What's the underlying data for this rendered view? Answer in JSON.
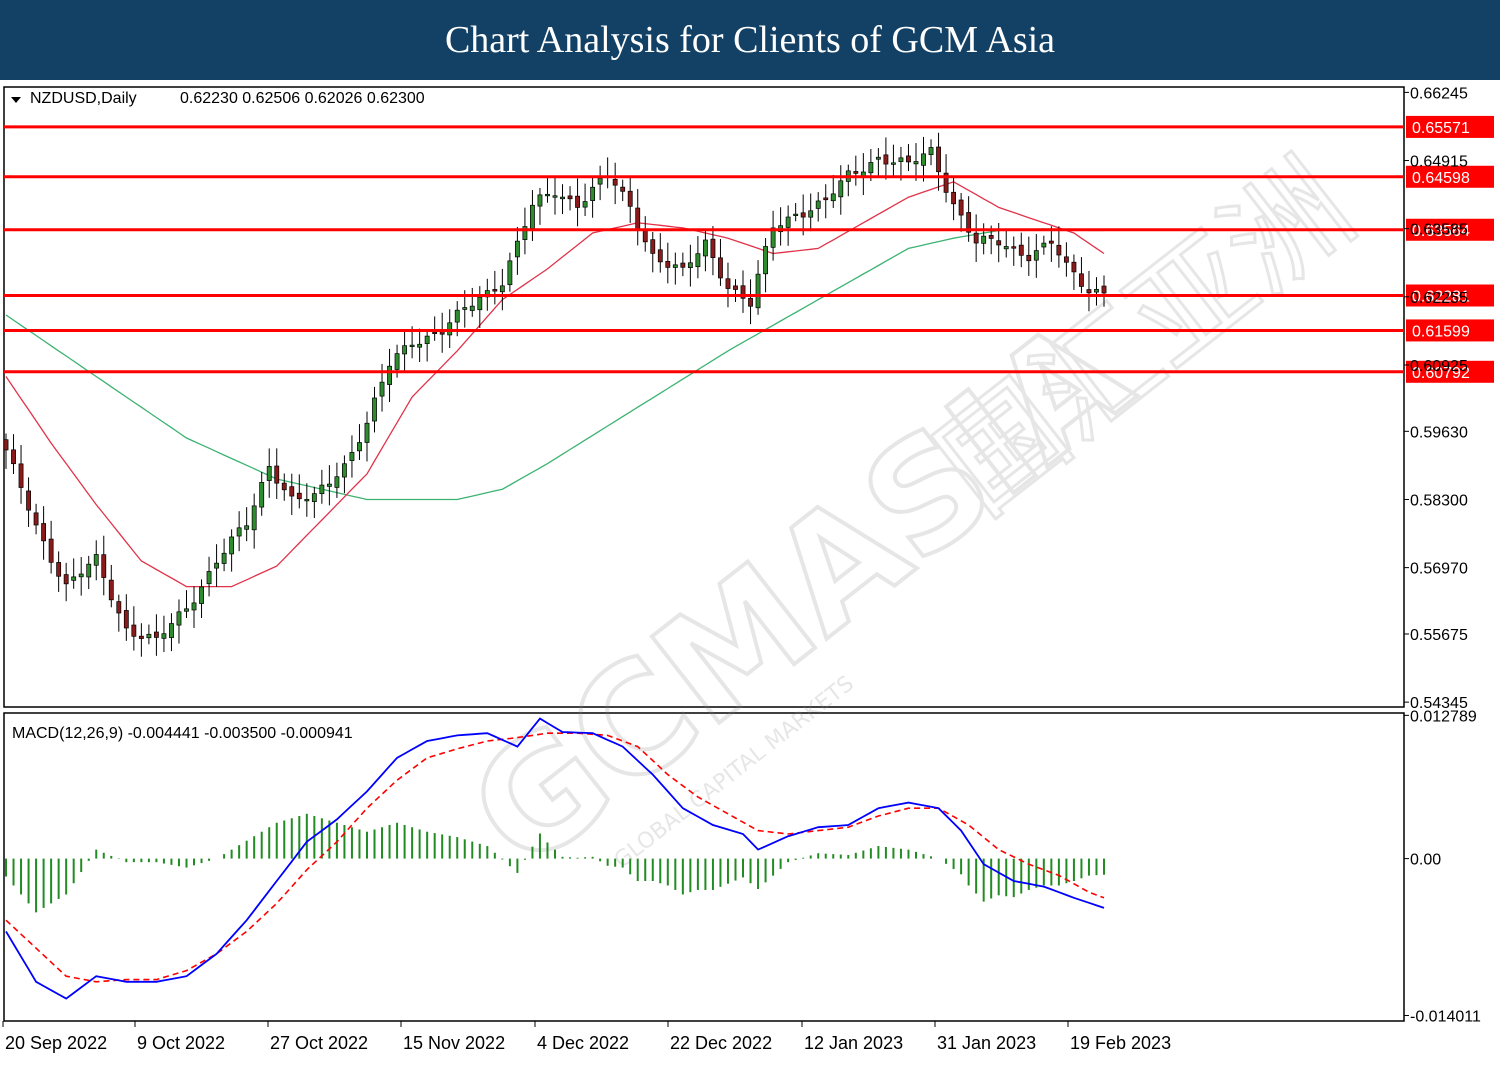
{
  "banner": {
    "title": "Chart Analysis for Clients of GCM Asia"
  },
  "colors": {
    "banner_bg": "#134166",
    "level_line": "#ff0000",
    "bull_candle": "#2e8b2e",
    "bear_candle": "#8b1a1a",
    "ma_fast": "#e0334a",
    "ma_slow": "#3cb371",
    "macd_line": "#0000ff",
    "signal_line": "#ff0000",
    "histogram": "#228b22"
  },
  "chart_data": {
    "type": "candlestick",
    "symbol_label": "NZDUSD,Daily",
    "ohlc_label": "0.62230 0.62506 0.62026 0.62300",
    "y_ticks": [
      "0.66245",
      "0.64915",
      "0.63585",
      "0.62255",
      "0.60925",
      "0.59630",
      "0.58300",
      "0.56970",
      "0.55675",
      "0.54345"
    ],
    "ylim": [
      0.5425,
      0.6635
    ],
    "x_labels": [
      "20 Sep 2022",
      "9 Oct 2022",
      "27 Oct 2022",
      "15 Nov 2022",
      "4 Dec 2022",
      "22 Dec 2022",
      "12 Jan 2023",
      "31 Jan 2023",
      "19 Feb 2023"
    ],
    "levels": [
      {
        "value": 0.65571,
        "label": "0.65571"
      },
      {
        "value": 0.64598,
        "label": "0.64598"
      },
      {
        "value": 0.63564,
        "label": "0.63564"
      },
      {
        "value": 0.62281,
        "label": "0.62281"
      },
      {
        "value": 0.61599,
        "label": "0.61599"
      },
      {
        "value": 0.60792,
        "label": "0.60792"
      }
    ],
    "close_anchors": [
      [
        0,
        0.592
      ],
      [
        4,
        0.578
      ],
      [
        8,
        0.566
      ],
      [
        12,
        0.571
      ],
      [
        16,
        0.558
      ],
      [
        20,
        0.555
      ],
      [
        24,
        0.562
      ],
      [
        28,
        0.571
      ],
      [
        32,
        0.578
      ],
      [
        35,
        0.59
      ],
      [
        38,
        0.583
      ],
      [
        41,
        0.583
      ],
      [
        45,
        0.59
      ],
      [
        48,
        0.598
      ],
      [
        51,
        0.609
      ],
      [
        54,
        0.614
      ],
      [
        58,
        0.616
      ],
      [
        62,
        0.621
      ],
      [
        66,
        0.626
      ],
      [
        70,
        0.64
      ],
      [
        73,
        0.643
      ],
      [
        76,
        0.641
      ],
      [
        80,
        0.646
      ],
      [
        83,
        0.64
      ],
      [
        86,
        0.631
      ],
      [
        90,
        0.627
      ],
      [
        93,
        0.633
      ],
      [
        96,
        0.625
      ],
      [
        99,
        0.621
      ],
      [
        102,
        0.636
      ],
      [
        105,
        0.639
      ],
      [
        109,
        0.641
      ],
      [
        112,
        0.646
      ],
      [
        116,
        0.65
      ],
      [
        120,
        0.648
      ],
      [
        123,
        0.651
      ],
      [
        126,
        0.641
      ],
      [
        129,
        0.633
      ],
      [
        132,
        0.633
      ],
      [
        136,
        0.631
      ],
      [
        139,
        0.633
      ],
      [
        141,
        0.628
      ],
      [
        144,
        0.624
      ],
      [
        146,
        0.624
      ]
    ],
    "ma_fast_anchors": [
      [
        0,
        0.607
      ],
      [
        6,
        0.594
      ],
      [
        12,
        0.582
      ],
      [
        18,
        0.571
      ],
      [
        24,
        0.566
      ],
      [
        30,
        0.566
      ],
      [
        36,
        0.57
      ],
      [
        42,
        0.579
      ],
      [
        48,
        0.588
      ],
      [
        54,
        0.603
      ],
      [
        60,
        0.612
      ],
      [
        66,
        0.622
      ],
      [
        72,
        0.628
      ],
      [
        78,
        0.635
      ],
      [
        84,
        0.637
      ],
      [
        90,
        0.636
      ],
      [
        96,
        0.634
      ],
      [
        102,
        0.631
      ],
      [
        108,
        0.632
      ],
      [
        114,
        0.637
      ],
      [
        120,
        0.642
      ],
      [
        126,
        0.645
      ],
      [
        132,
        0.64
      ],
      [
        138,
        0.637
      ],
      [
        142,
        0.635
      ],
      [
        146,
        0.631
      ]
    ],
    "ma_slow_anchors": [
      [
        0,
        0.619
      ],
      [
        12,
        0.607
      ],
      [
        24,
        0.595
      ],
      [
        36,
        0.587
      ],
      [
        48,
        0.583
      ],
      [
        60,
        0.583
      ],
      [
        66,
        0.585
      ],
      [
        72,
        0.59
      ],
      [
        84,
        0.601
      ],
      [
        96,
        0.612
      ],
      [
        108,
        0.622
      ],
      [
        120,
        0.632
      ],
      [
        126,
        0.634
      ],
      [
        132,
        0.6355
      ],
      [
        138,
        0.6358
      ],
      [
        144,
        0.6355
      ]
    ],
    "macd": {
      "label": "MACD(12,26,9) -0.004441 -0.003500 -0.000941",
      "y_ticks": [
        "0.012789",
        "0.00",
        "-0.014011"
      ],
      "ylim": [
        -0.0145,
        0.013
      ],
      "macd_anchors": [
        [
          0,
          -0.0065
        ],
        [
          4,
          -0.011
        ],
        [
          8,
          -0.0125
        ],
        [
          12,
          -0.0105
        ],
        [
          16,
          -0.011
        ],
        [
          20,
          -0.011
        ],
        [
          24,
          -0.0105
        ],
        [
          28,
          -0.0085
        ],
        [
          32,
          -0.0055
        ],
        [
          36,
          -0.002
        ],
        [
          40,
          0.0015
        ],
        [
          44,
          0.0035
        ],
        [
          48,
          0.006
        ],
        [
          52,
          0.009
        ],
        [
          56,
          0.0105
        ],
        [
          60,
          0.011
        ],
        [
          64,
          0.0112
        ],
        [
          68,
          0.01
        ],
        [
          71,
          0.0125
        ],
        [
          74,
          0.0113
        ],
        [
          78,
          0.0112
        ],
        [
          82,
          0.01
        ],
        [
          86,
          0.0075
        ],
        [
          90,
          0.0045
        ],
        [
          94,
          0.003
        ],
        [
          98,
          0.0022
        ],
        [
          100,
          0.0008
        ],
        [
          104,
          0.002
        ],
        [
          108,
          0.0028
        ],
        [
          112,
          0.003
        ],
        [
          116,
          0.0045
        ],
        [
          120,
          0.005
        ],
        [
          124,
          0.0045
        ],
        [
          127,
          0.0025
        ],
        [
          130,
          -0.0005
        ],
        [
          134,
          -0.002
        ],
        [
          138,
          -0.0025
        ],
        [
          142,
          -0.0035
        ],
        [
          146,
          -0.0044
        ]
      ],
      "signal_anchors": [
        [
          0,
          -0.0055
        ],
        [
          4,
          -0.008
        ],
        [
          8,
          -0.0105
        ],
        [
          12,
          -0.011
        ],
        [
          16,
          -0.0108
        ],
        [
          20,
          -0.0108
        ],
        [
          24,
          -0.01
        ],
        [
          28,
          -0.0085
        ],
        [
          32,
          -0.0065
        ],
        [
          36,
          -0.004
        ],
        [
          40,
          -0.001
        ],
        [
          44,
          0.0015
        ],
        [
          48,
          0.0045
        ],
        [
          52,
          0.007
        ],
        [
          56,
          0.009
        ],
        [
          60,
          0.0098
        ],
        [
          64,
          0.0105
        ],
        [
          68,
          0.0108
        ],
        [
          72,
          0.0112
        ],
        [
          76,
          0.0112
        ],
        [
          80,
          0.011
        ],
        [
          84,
          0.01
        ],
        [
          88,
          0.0075
        ],
        [
          92,
          0.0055
        ],
        [
          96,
          0.004
        ],
        [
          100,
          0.0025
        ],
        [
          104,
          0.0022
        ],
        [
          108,
          0.0025
        ],
        [
          112,
          0.0028
        ],
        [
          116,
          0.0038
        ],
        [
          120,
          0.0045
        ],
        [
          124,
          0.0045
        ],
        [
          128,
          0.003
        ],
        [
          132,
          0.0008
        ],
        [
          136,
          -0.0005
        ],
        [
          140,
          -0.0015
        ],
        [
          144,
          -0.003
        ],
        [
          146,
          -0.0035
        ]
      ]
    },
    "n_bars": 147,
    "grid": false
  },
  "watermark": {
    "main": "GCMASIA",
    "cjk": "国汇亚洲",
    "sub": "GLOBAL CAPITAL MARKETS"
  }
}
